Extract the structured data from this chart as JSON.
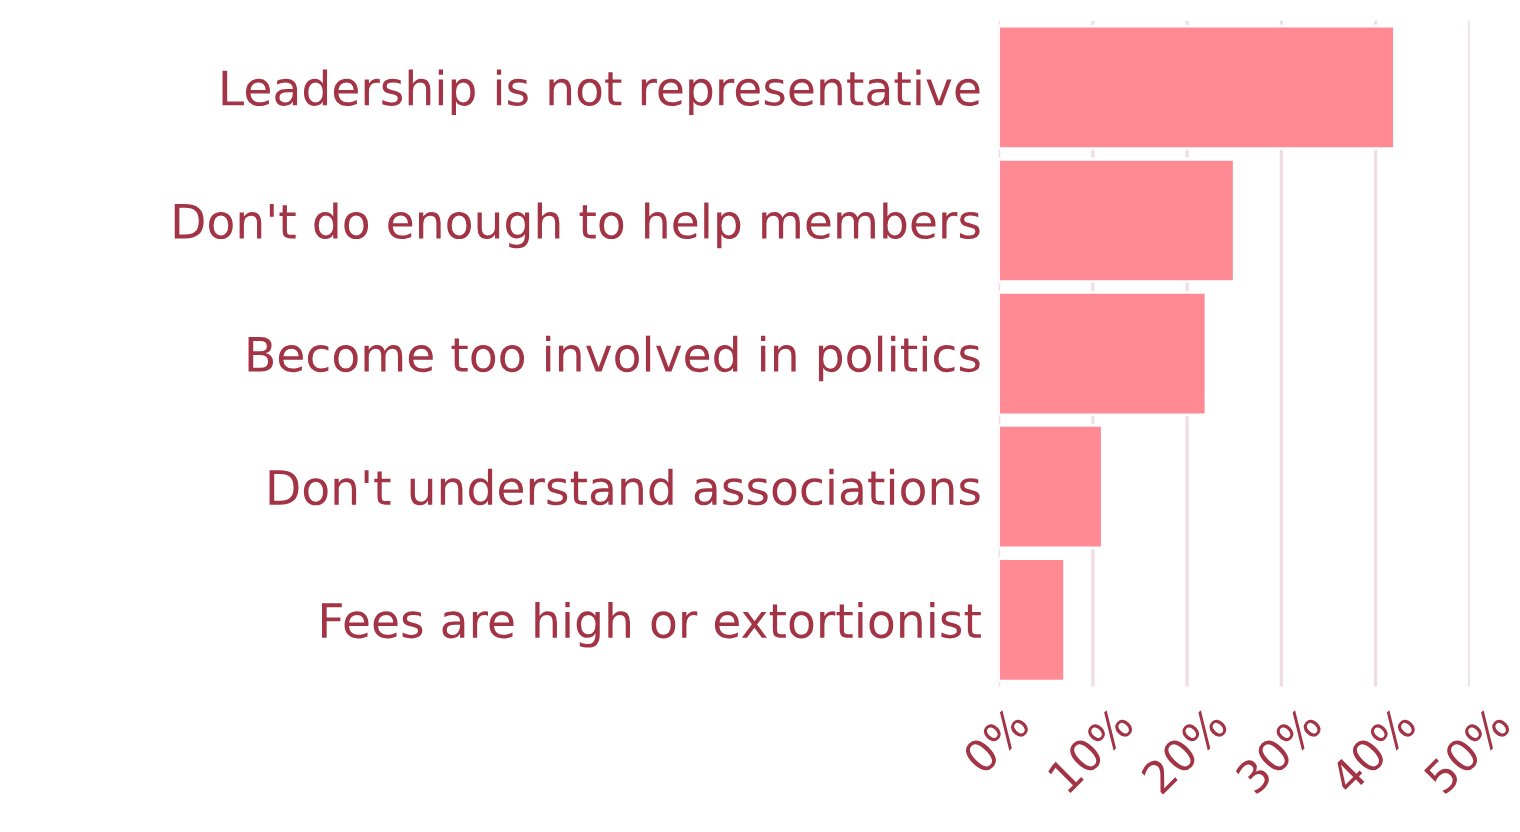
{
  "chart_data": {
    "type": "bar",
    "orientation": "horizontal",
    "categories": [
      "Leadership is not representative",
      "Don't do enough to help members",
      "Become too involved in politics",
      "Don't understand associations",
      "Fees are high or extortionist"
    ],
    "values": [
      42,
      25,
      22,
      11,
      7
    ],
    "color": "#ff8a94",
    "xlim": [
      0,
      50
    ],
    "xticks": [
      {
        "value": 0,
        "label": "0%"
      },
      {
        "value": 10,
        "label": "10%"
      },
      {
        "value": 20,
        "label": "20%"
      },
      {
        "value": 30,
        "label": "30%"
      },
      {
        "value": 40,
        "label": "40%"
      },
      {
        "value": 50,
        "label": "50%"
      }
    ],
    "grid": "x"
  }
}
